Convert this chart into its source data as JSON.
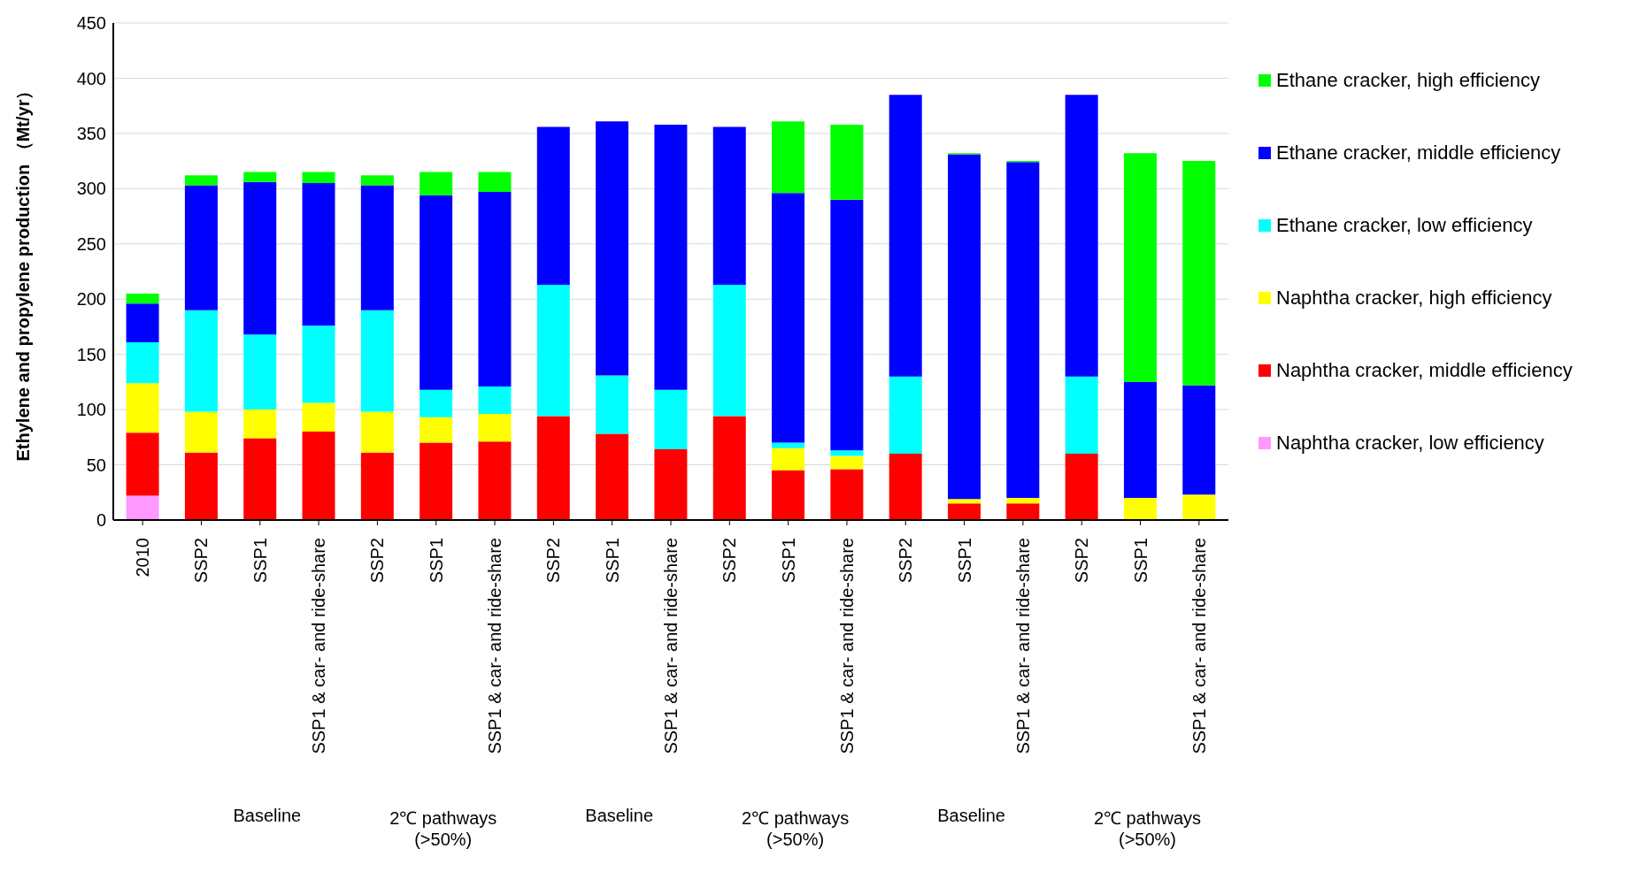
{
  "chart_data": {
    "type": "bar",
    "stacked": true,
    "ylabel": "Ethylene and propylene production （Mt/yr）",
    "categories": [
      "2010",
      "SSP2",
      "SSP1",
      "SSP1 & car- and ride-share",
      "SSP2",
      "SSP1",
      "SSP1 & car- and ride-share",
      "SSP2",
      "SSP1",
      "SSP1 & car- and ride-share",
      "SSP2",
      "SSP1",
      "SSP1 & car- and ride-share",
      "SSP2",
      "SSP1",
      "SSP1 & car- and ride-share",
      "SSP2",
      "SSP1",
      "SSP1 & car- and ride-share"
    ],
    "series": [
      {
        "name": "Naphtha cracker, low efficiency",
        "color": "#ff99ff",
        "values": [
          22,
          0,
          0,
          0,
          0,
          0,
          0,
          0,
          0,
          0,
          0,
          0,
          0,
          0,
          0,
          0,
          0,
          0,
          0
        ]
      },
      {
        "name": "Naphtha cracker, middle efficiency",
        "color": "#ff0000",
        "values": [
          57,
          61,
          74,
          80,
          61,
          70,
          71,
          94,
          78,
          64,
          94,
          45,
          46,
          60,
          15,
          15,
          60,
          0,
          0
        ]
      },
      {
        "name": "Naphtha cracker, high efficiency",
        "color": "#ffff00",
        "values": [
          45,
          37,
          26,
          26,
          37,
          23,
          25,
          0,
          0,
          0,
          0,
          20,
          12,
          0,
          4,
          5,
          0,
          20,
          23
        ]
      },
      {
        "name": "Ethane cracker, low efficiency",
        "color": "#00ffff",
        "values": [
          37,
          92,
          68,
          70,
          92,
          25,
          25,
          119,
          53,
          54,
          119,
          5,
          5,
          70,
          0,
          0,
          70,
          0,
          0
        ]
      },
      {
        "name": "Ethane cracker, middle efficiency",
        "color": "#0000ff",
        "values": [
          35,
          113,
          138,
          129,
          113,
          176,
          176,
          143,
          230,
          240,
          143,
          226,
          227,
          255,
          312,
          304,
          255,
          105,
          99
        ]
      },
      {
        "name": "Ethane cracker, high efficiency",
        "color": "#00ff00",
        "values": [
          9,
          9,
          9,
          10,
          9,
          21,
          18,
          0,
          0,
          0,
          0,
          65,
          68,
          0,
          1,
          1,
          0,
          207,
          203
        ]
      }
    ],
    "ylim": [
      0,
      450
    ],
    "yticks": [
      0,
      50,
      100,
      150,
      200,
      250,
      300,
      350,
      400,
      450
    ],
    "grid": "y",
    "legend": "right",
    "annotations": [
      "Baseline",
      "2℃ pathways (>50%)",
      "Baseline",
      "2℃ pathways (>50%)",
      "Baseline",
      "2℃ pathways (>50%)"
    ]
  }
}
